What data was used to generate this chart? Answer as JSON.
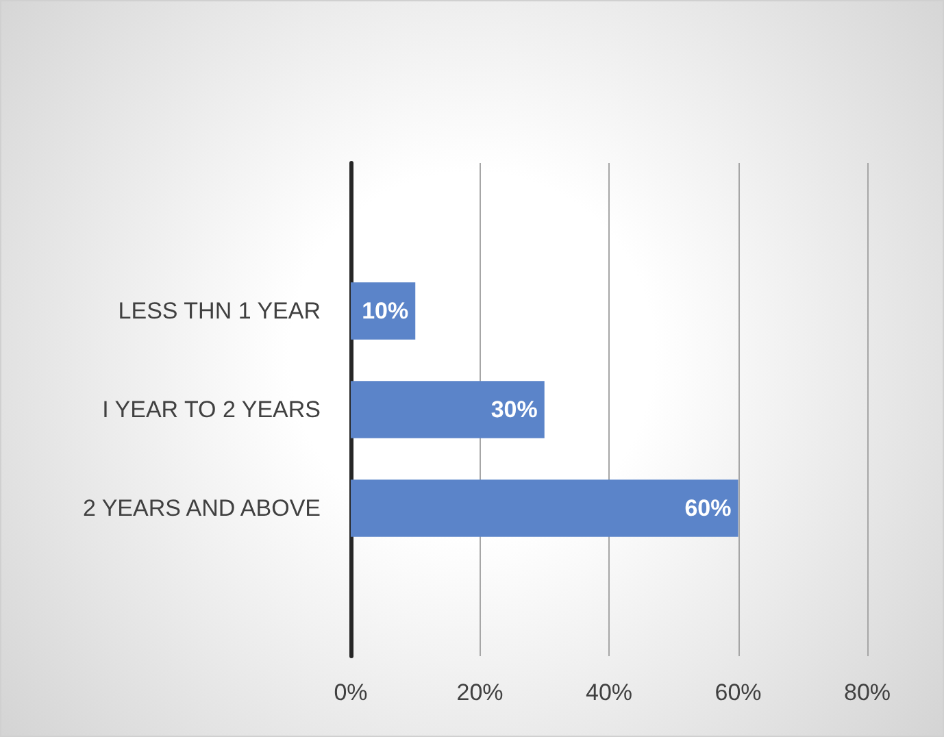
{
  "chart_data": {
    "type": "bar",
    "orientation": "horizontal",
    "categories": [
      null,
      "LESS THN 1 YEAR",
      "I YEAR TO 2 YEARS",
      "2 YEARS AND ABOVE",
      null
    ],
    "values": [
      null,
      10,
      30,
      60,
      null
    ],
    "value_labels": [
      null,
      "10%",
      "30%",
      "60%",
      null
    ],
    "color": "#5b84c9",
    "xlim": [
      0,
      80
    ],
    "xticks": [
      {
        "value": 0,
        "label": "0%"
      },
      {
        "value": 20,
        "label": "20%"
      },
      {
        "value": 40,
        "label": "40%"
      },
      {
        "value": 60,
        "label": "60%"
      },
      {
        "value": 80,
        "label": "80%"
      }
    ],
    "grid": "x"
  }
}
